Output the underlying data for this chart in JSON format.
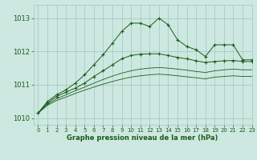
{
  "xlabel": "Graphe pression niveau de la mer (hPa)",
  "xlim": [
    -0.5,
    23
  ],
  "ylim": [
    1009.8,
    1013.4
  ],
  "yticks": [
    1010,
    1011,
    1012,
    1013
  ],
  "xticks": [
    0,
    1,
    2,
    3,
    4,
    5,
    6,
    7,
    8,
    9,
    10,
    11,
    12,
    13,
    14,
    15,
    16,
    17,
    18,
    19,
    20,
    21,
    22,
    23
  ],
  "bg_color": "#cde8e0",
  "grid_color": "#9dc8c0",
  "line_color": "#1a5c1a",
  "series": [
    {
      "x": [
        0,
        1,
        2,
        3,
        4,
        5,
        6,
        7,
        8,
        9,
        10,
        11,
        12,
        13,
        14,
        15,
        16,
        17,
        18,
        19,
        20,
        21,
        22,
        23
      ],
      "y": [
        1010.15,
        1010.5,
        1010.7,
        1010.85,
        1011.05,
        1011.3,
        1011.6,
        1011.9,
        1012.25,
        1012.6,
        1012.85,
        1012.85,
        1012.75,
        1013.0,
        1012.8,
        1012.35,
        1012.15,
        1012.05,
        1011.85,
        1012.2,
        1012.2,
        1012.2,
        1011.75,
        1011.75
      ],
      "marker": "+"
    },
    {
      "x": [
        0,
        1,
        2,
        3,
        4,
        5,
        6,
        7,
        8,
        9,
        10,
        11,
        12,
        13,
        14,
        15,
        16,
        17,
        18,
        19,
        20,
        21,
        22,
        23
      ],
      "y": [
        1010.15,
        1010.45,
        1010.65,
        1010.78,
        1010.9,
        1011.05,
        1011.25,
        1011.42,
        1011.6,
        1011.78,
        1011.88,
        1011.92,
        1011.93,
        1011.93,
        1011.88,
        1011.82,
        1011.78,
        1011.72,
        1011.67,
        1011.7,
        1011.72,
        1011.73,
        1011.7,
        1011.7
      ],
      "marker": "+"
    },
    {
      "x": [
        0,
        1,
        2,
        3,
        4,
        5,
        6,
        7,
        8,
        9,
        10,
        11,
        12,
        13,
        14,
        15,
        16,
        17,
        18,
        19,
        20,
        21,
        22,
        23
      ],
      "y": [
        1010.15,
        1010.42,
        1010.58,
        1010.7,
        1010.82,
        1010.93,
        1011.05,
        1011.16,
        1011.26,
        1011.35,
        1011.42,
        1011.47,
        1011.5,
        1011.52,
        1011.5,
        1011.47,
        1011.44,
        1011.4,
        1011.37,
        1011.42,
        1011.45,
        1011.47,
        1011.45,
        1011.45
      ],
      "marker": null
    },
    {
      "x": [
        0,
        1,
        2,
        3,
        4,
        5,
        6,
        7,
        8,
        9,
        10,
        11,
        12,
        13,
        14,
        15,
        16,
        17,
        18,
        19,
        20,
        21,
        22,
        23
      ],
      "y": [
        1010.15,
        1010.38,
        1010.53,
        1010.63,
        1010.74,
        1010.84,
        1010.93,
        1011.02,
        1011.1,
        1011.17,
        1011.23,
        1011.27,
        1011.3,
        1011.32,
        1011.3,
        1011.27,
        1011.24,
        1011.21,
        1011.18,
        1011.23,
        1011.25,
        1011.27,
        1011.25,
        1011.25
      ],
      "marker": null
    }
  ]
}
